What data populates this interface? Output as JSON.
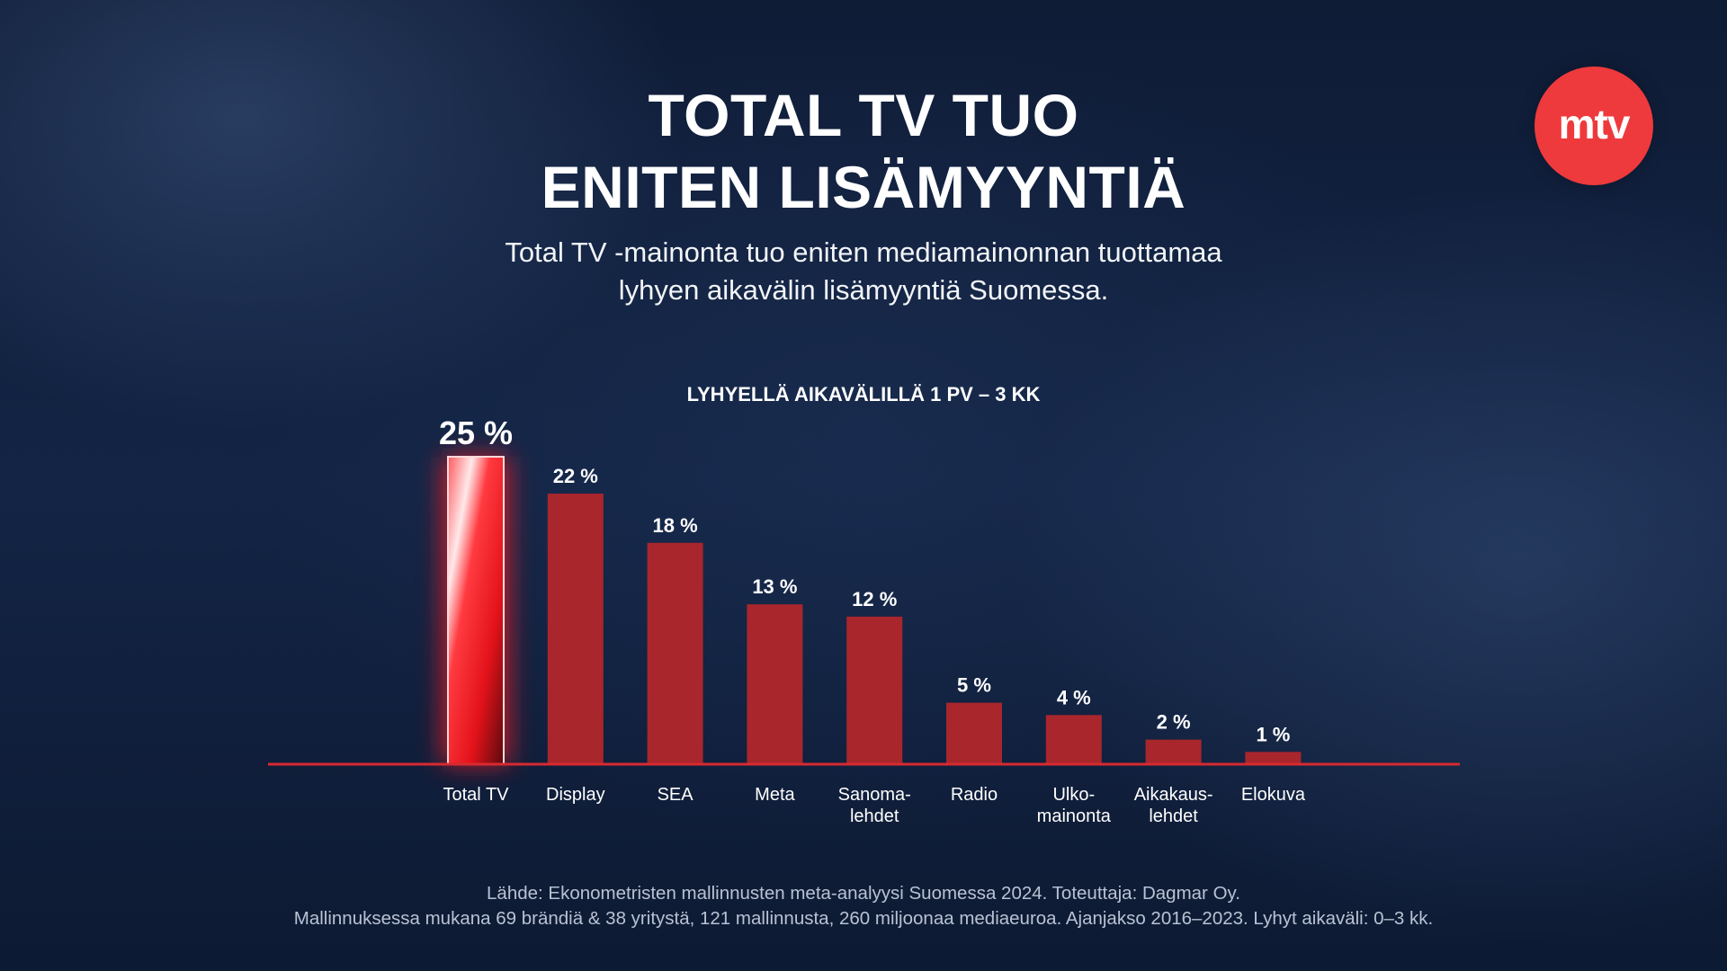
{
  "header": {
    "title_line1": "TOTAL TV TUO",
    "title_line2": "ENITEN LISÄMYYNTIÄ",
    "subtitle_line1": "Total TV -mainonta tuo eniten mediamainonnan tuottamaa",
    "subtitle_line2": "lyhyen aikavälin lisämyyntiä Suomessa."
  },
  "logo": {
    "text": "mtv",
    "color": "#ee3a3c"
  },
  "chart_data": {
    "type": "bar",
    "title": "LYHYELLÄ AIKAVÄLILLÄ 1 PV – 3 KK",
    "xlabel": "",
    "ylabel": "",
    "ylim": [
      0,
      25
    ],
    "grid": false,
    "categories": [
      [
        "Total TV"
      ],
      [
        "Display"
      ],
      [
        "SEA"
      ],
      [
        "Meta"
      ],
      [
        "Sanoma-",
        "lehdet"
      ],
      [
        "Radio"
      ],
      [
        "Ulko-",
        "mainonta"
      ],
      [
        "Aikakaus-",
        "lehdet"
      ],
      [
        "Elokuva"
      ]
    ],
    "values": [
      25,
      22,
      18,
      13,
      12,
      5,
      4,
      2,
      1
    ],
    "labels": [
      "25 %",
      "22 %",
      "18 %",
      "13 %",
      "12 %",
      "5 %",
      "4 %",
      "2 %",
      "1 %"
    ],
    "highlight_index": 0,
    "colors": {
      "bar": "#a9262d",
      "highlight": "#e8131b",
      "baseline": "#d72a30"
    }
  },
  "footer": {
    "source_line1": "Lähde: Ekonometristen mallinnusten meta-analyysi Suomessa 2024. Toteuttaja: Dagmar Oy.",
    "source_line2": "Mallinnuksessa mukana 69 brändiä & 38 yritystä, 121 mallinnusta, 260 miljoonaa mediaeuroa. Ajanjakso 2016–2023. Lyhyt aikaväli: 0–3 kk."
  }
}
